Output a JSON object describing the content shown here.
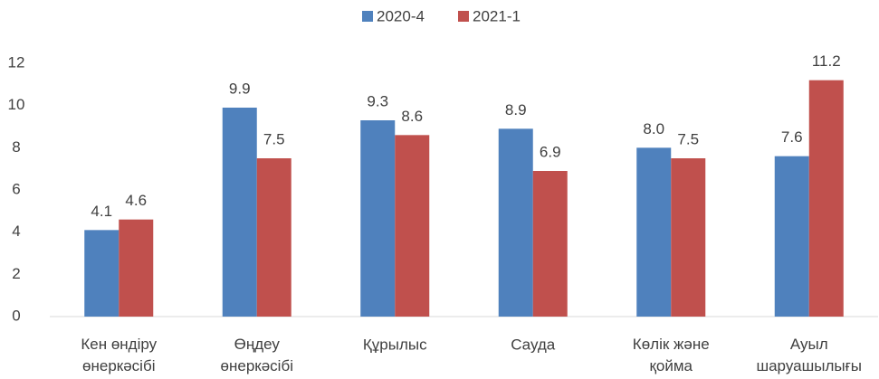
{
  "chart_data": {
    "type": "bar",
    "categories": [
      "Кен өндіру\nөнеркәсібі",
      "Өңдеу\nөнеркәсібі",
      "Құрылыс",
      "Сауда",
      "Көлік және\nқойма",
      "Ауыл\nшаруашылығы"
    ],
    "series": [
      {
        "name": "2020-4",
        "color": "#4f81bd",
        "values": [
          4.1,
          9.9,
          9.3,
          8.9,
          8.0,
          7.6
        ],
        "value_labels": [
          "4.1",
          "9.9",
          "9.3",
          "8.9",
          "8.0",
          "7.6"
        ]
      },
      {
        "name": "2021-1",
        "color": "#c0504d",
        "values": [
          4.6,
          7.5,
          8.6,
          6.9,
          7.5,
          11.2
        ],
        "value_labels": [
          "4.6",
          "7.5",
          "8.6",
          "6.9",
          "7.5",
          "11.2"
        ]
      }
    ],
    "ylim": [
      0,
      12
    ],
    "yticks": [
      0,
      2,
      4,
      6,
      8,
      10,
      12
    ],
    "grid": false,
    "legend": "top"
  }
}
